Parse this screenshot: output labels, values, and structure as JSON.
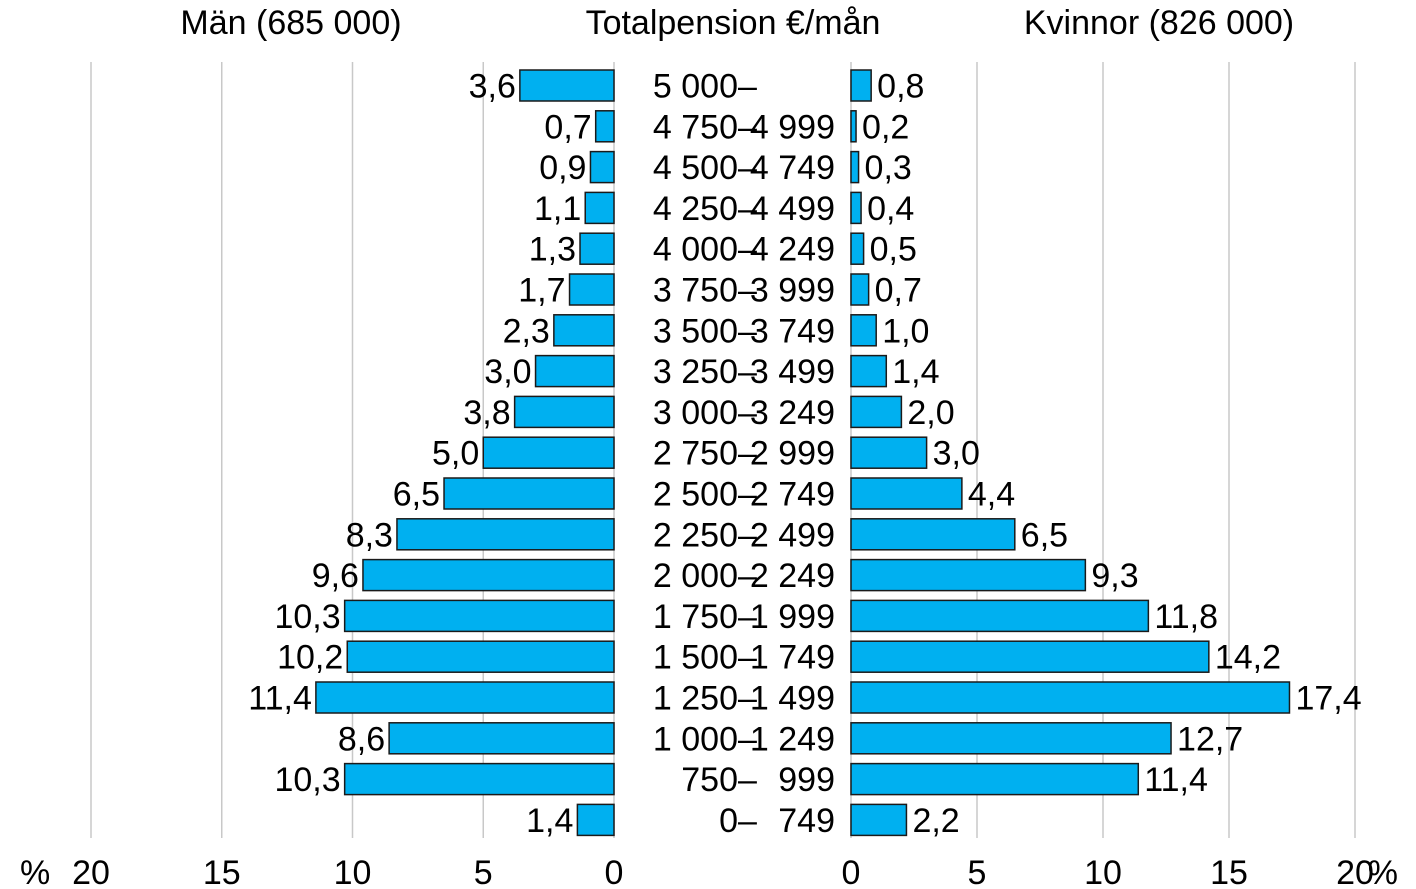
{
  "chart_data": {
    "type": "bar",
    "orientation": "horizontal-population-pyramid",
    "headers": {
      "left": "Män (685 000)",
      "center": "Totalpension €/mån",
      "right": "Kvinnor (826 000)"
    },
    "axis_unit": "%",
    "xlim": [
      0,
      20
    ],
    "xticks": [
      0,
      5,
      10,
      15,
      20
    ],
    "xtick_labels": [
      "0",
      "5",
      "10",
      "15",
      "20"
    ],
    "grid": true,
    "bar_color": "#00B0F0",
    "categories": [
      {
        "from": "5 000",
        "to": ""
      },
      {
        "from": "4 750",
        "to": "4 999"
      },
      {
        "from": "4 500",
        "to": "4 749"
      },
      {
        "from": "4 250",
        "to": "4 499"
      },
      {
        "from": "4 000",
        "to": "4 249"
      },
      {
        "from": "3 750",
        "to": "3 999"
      },
      {
        "from": "3 500",
        "to": "3 749"
      },
      {
        "from": "3 250",
        "to": "3 499"
      },
      {
        "from": "3 000",
        "to": "3 249"
      },
      {
        "from": "2 750",
        "to": "2 999"
      },
      {
        "from": "2 500",
        "to": "2 749"
      },
      {
        "from": "2 250",
        "to": "2 499"
      },
      {
        "from": "2 000",
        "to": "2 249"
      },
      {
        "from": "1 750",
        "to": "1 999"
      },
      {
        "from": "1 500",
        "to": "1 749"
      },
      {
        "from": "1 250",
        "to": "1 499"
      },
      {
        "from": "1 000",
        "to": "1 249"
      },
      {
        "from": "750",
        "to": "999"
      },
      {
        "from": "0",
        "to": "749"
      }
    ],
    "series": [
      {
        "name": "Män (685 000)",
        "values": [
          3.6,
          0.7,
          0.9,
          1.1,
          1.3,
          1.7,
          2.3,
          3.0,
          3.8,
          5.0,
          6.5,
          8.3,
          9.6,
          10.3,
          10.2,
          11.4,
          8.6,
          10.3,
          1.4
        ],
        "labels": [
          "3,6",
          "0,7",
          "0,9",
          "1,1",
          "1,3",
          "1,7",
          "2,3",
          "3,0",
          "3,8",
          "5,0",
          "6,5",
          "8,3",
          "9,6",
          "10,3",
          "10,2",
          "11,4",
          "8,6",
          "10,3",
          "1,4"
        ]
      },
      {
        "name": "Kvinnor (826 000)",
        "values": [
          0.8,
          0.2,
          0.3,
          0.4,
          0.5,
          0.7,
          1.0,
          1.4,
          2.0,
          3.0,
          4.4,
          6.5,
          9.3,
          11.8,
          14.2,
          17.4,
          12.7,
          11.4,
          2.2
        ],
        "labels": [
          "0,8",
          "0,2",
          "0,3",
          "0,4",
          "0,5",
          "0,7",
          "1,0",
          "1,4",
          "2,0",
          "3,0",
          "4,4",
          "6,5",
          "9,3",
          "11,8",
          "14,2",
          "17,4",
          "12,7",
          "11,4",
          "2,2"
        ]
      }
    ]
  }
}
